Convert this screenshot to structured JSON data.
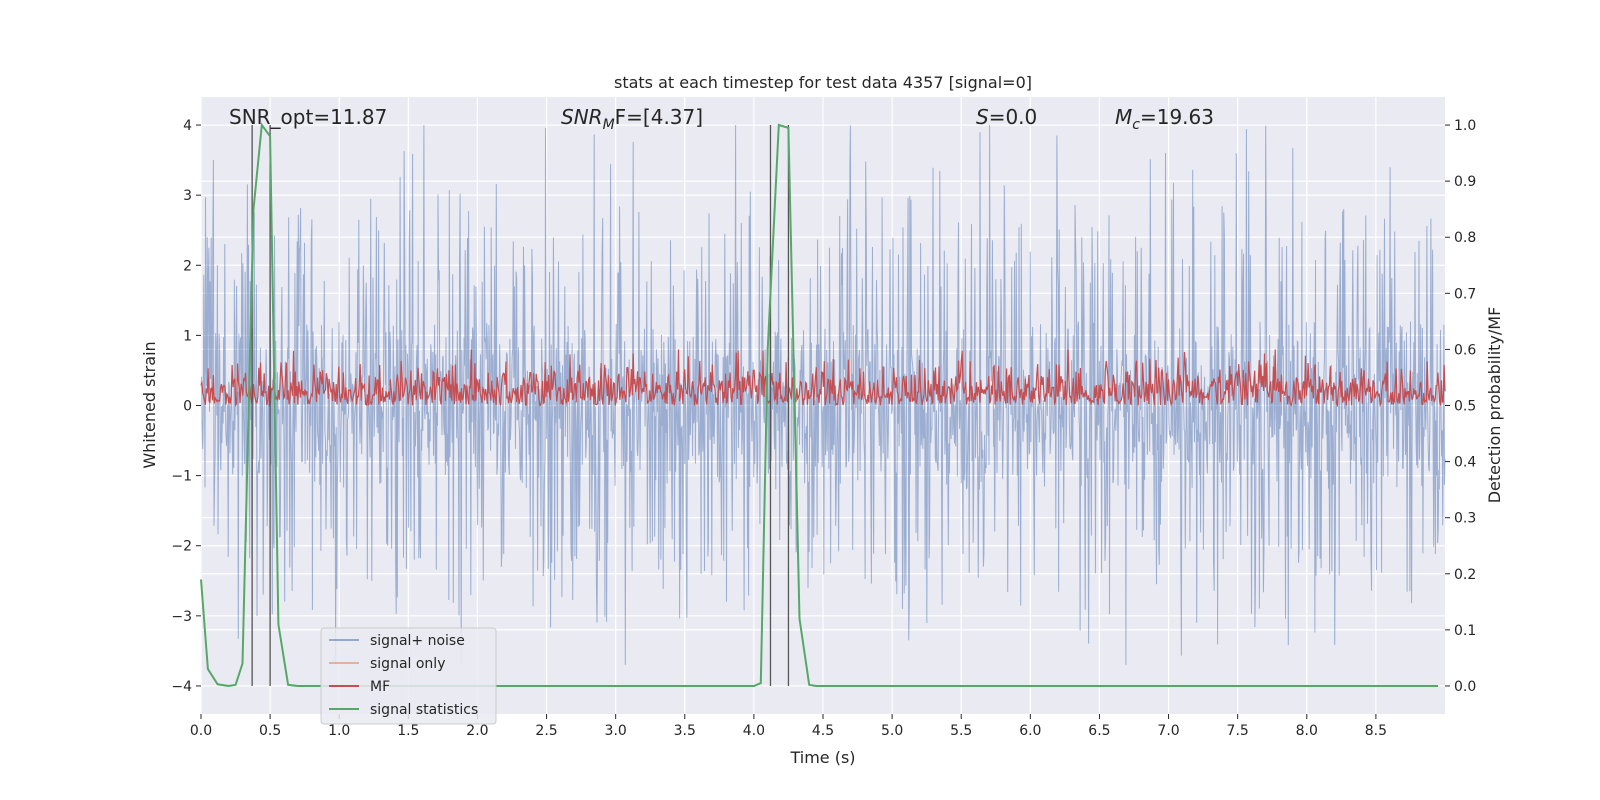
{
  "chart_data": {
    "type": "line",
    "title": "stats at each timestep for test data 4357 [signal=0]",
    "xlabel": "Time (s)",
    "ylabel": "Whitened strain",
    "y2label": "Detection probability/MF",
    "xlim": [
      0,
      9.0
    ],
    "ylim": [
      -4.4,
      4.4
    ],
    "y2lim": [
      -0.05,
      1.05
    ],
    "xticks": [
      0.0,
      0.5,
      1.0,
      1.5,
      2.0,
      2.5,
      3.0,
      3.5,
      4.0,
      4.5,
      5.0,
      5.5,
      6.0,
      6.5,
      7.0,
      7.5,
      8.0,
      8.5
    ],
    "xtick_labels": [
      "0.0",
      "0.5",
      "1.0",
      "1.5",
      "2.0",
      "2.5",
      "3.0",
      "3.5",
      "4.0",
      "4.5",
      "5.0",
      "5.5",
      "6.0",
      "6.5",
      "7.0",
      "7.5",
      "8.0",
      "8.5"
    ],
    "yticks": [
      -4,
      -3,
      -2,
      -1,
      0,
      1,
      2,
      3,
      4
    ],
    "ytick_labels": [
      "−4",
      "−3",
      "−2",
      "−1",
      "0",
      "1",
      "2",
      "3",
      "4"
    ],
    "y2ticks": [
      0.0,
      0.1,
      0.2,
      0.3,
      0.4,
      0.5,
      0.6,
      0.7,
      0.8,
      0.9,
      1.0
    ],
    "y2tick_labels": [
      "0.0",
      "0.1",
      "0.2",
      "0.3",
      "0.4",
      "0.5",
      "0.6",
      "0.7",
      "0.8",
      "0.9",
      "1.0"
    ],
    "grid": true,
    "legend_position": "lower-left",
    "annotations": {
      "snr_opt": "SNR_opt=11.87",
      "snr_mf_main": "SNR",
      "snr_mf_sub": "M",
      "snr_mf_rest": "F=[4.37]",
      "s_main": "S",
      "s_rest": "=0.0",
      "mc_main": "M",
      "mc_sub": "c",
      "mc_rest": "=19.63"
    },
    "series": [
      {
        "name": "signal+ noise",
        "color": "#4c72b0",
        "note_values": "dense whitened noise, amplitude approx ±2.0, peaks to about ±4"
      },
      {
        "name": "signal only",
        "color": "#dd8452",
        "values": []
      },
      {
        "name": "MF",
        "color": "#c44e52",
        "axis": "right",
        "note_values": "fluctuates between 0.5 and about 0.6 on right axis"
      },
      {
        "name": "signal statistics",
        "color": "#55a868",
        "axis": "right",
        "x": [
          0.0,
          0.05,
          0.12,
          0.2,
          0.25,
          0.3,
          0.38,
          0.44,
          0.5,
          0.56,
          0.63,
          0.7,
          1.0,
          2.0,
          3.0,
          4.0,
          4.05,
          4.1,
          4.18,
          4.25,
          4.33,
          4.4,
          4.45,
          5.0,
          6.0,
          7.0,
          8.0,
          8.95
        ],
        "values": [
          0.19,
          0.03,
          0.003,
          0.0,
          0.002,
          0.04,
          0.85,
          1.0,
          0.98,
          0.11,
          0.002,
          0.0,
          0.0,
          0.0,
          0.0,
          0.0,
          0.005,
          0.6,
          1.0,
          0.995,
          0.12,
          0.002,
          0.0,
          0.0,
          0.0,
          0.0,
          0.0,
          0.0
        ]
      }
    ],
    "vertical_markers": [
      0.37,
      0.5,
      4.12,
      4.25
    ]
  },
  "colors": {
    "axes_bg": "#eaeaf2",
    "grid": "#ffffff",
    "marker_line": "#555555"
  }
}
